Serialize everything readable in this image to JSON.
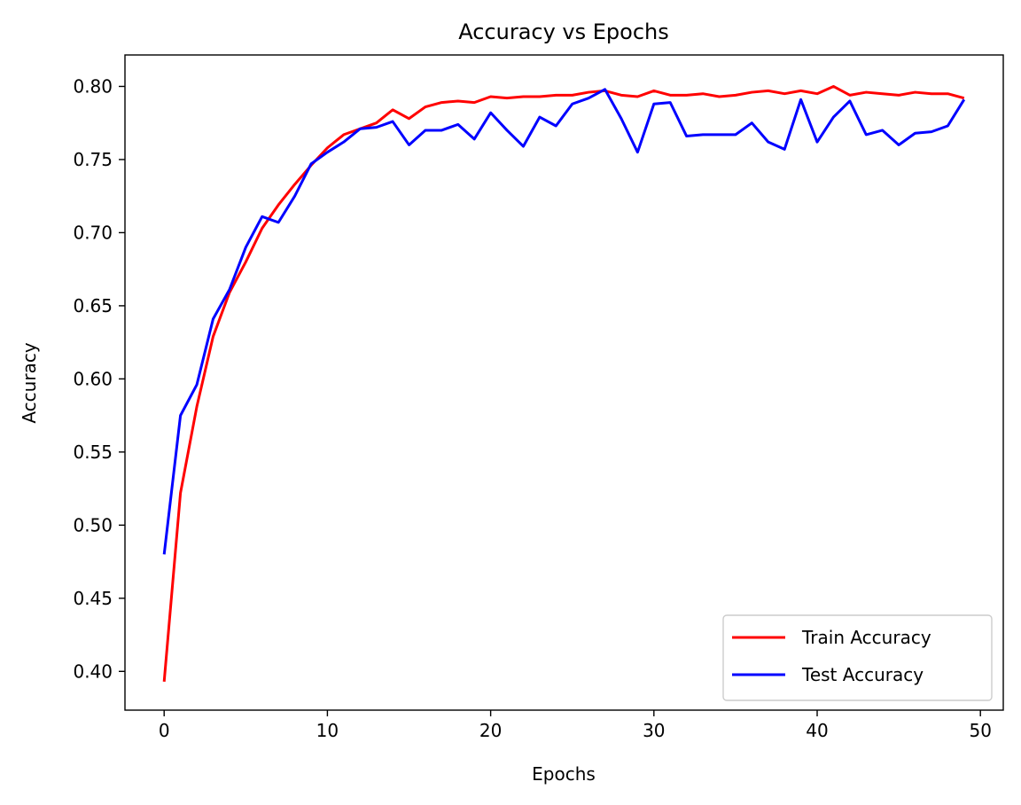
{
  "chart_data": {
    "type": "line",
    "title": "Accuracy vs Epochs",
    "xlabel": "Epochs",
    "ylabel": "Accuracy",
    "xlim": [
      -2.4,
      51.4
    ],
    "ylim": [
      0.3735,
      0.8215
    ],
    "xticks": [
      0,
      10,
      20,
      30,
      40,
      50
    ],
    "xtick_labels": [
      "0",
      "10",
      "20",
      "30",
      "40",
      "50"
    ],
    "yticks": [
      0.4,
      0.45,
      0.5,
      0.55,
      0.6,
      0.65,
      0.7,
      0.75,
      0.8
    ],
    "ytick_labels": [
      "0.40",
      "0.45",
      "0.50",
      "0.55",
      "0.60",
      "0.65",
      "0.70",
      "0.75",
      "0.80"
    ],
    "grid": false,
    "legend_position": "lower-right",
    "x": [
      0,
      1,
      2,
      3,
      4,
      5,
      6,
      7,
      8,
      9,
      10,
      11,
      12,
      13,
      14,
      15,
      16,
      17,
      18,
      19,
      20,
      21,
      22,
      23,
      24,
      25,
      26,
      27,
      28,
      29,
      30,
      31,
      32,
      33,
      34,
      35,
      36,
      37,
      38,
      39,
      40,
      41,
      42,
      43,
      44,
      45,
      46,
      47,
      48,
      49
    ],
    "series": [
      {
        "name": "Train Accuracy",
        "color": "#ff0000",
        "values": [
          0.393,
          0.522,
          0.581,
          0.629,
          0.659,
          0.68,
          0.703,
          0.719,
          0.733,
          0.746,
          0.758,
          0.767,
          0.771,
          0.775,
          0.784,
          0.778,
          0.786,
          0.789,
          0.79,
          0.789,
          0.793,
          0.792,
          0.793,
          0.793,
          0.794,
          0.794,
          0.796,
          0.797,
          0.794,
          0.793,
          0.797,
          0.794,
          0.794,
          0.795,
          0.793,
          0.794,
          0.796,
          0.797,
          0.795,
          0.797,
          0.795,
          0.8,
          0.794,
          0.796,
          0.795,
          0.794,
          0.796,
          0.795,
          0.795,
          0.792
        ]
      },
      {
        "name": "Test Accuracy",
        "color": "#0000ff",
        "values": [
          0.48,
          0.575,
          0.596,
          0.641,
          0.661,
          0.69,
          0.711,
          0.707,
          0.725,
          0.747,
          0.755,
          0.762,
          0.771,
          0.772,
          0.776,
          0.76,
          0.77,
          0.77,
          0.774,
          0.764,
          0.782,
          0.77,
          0.759,
          0.779,
          0.773,
          0.788,
          0.792,
          0.798,
          0.778,
          0.755,
          0.788,
          0.789,
          0.766,
          0.767,
          0.767,
          0.767,
          0.775,
          0.762,
          0.757,
          0.791,
          0.762,
          0.779,
          0.79,
          0.767,
          0.77,
          0.76,
          0.768,
          0.769,
          0.773,
          0.791
        ]
      }
    ]
  }
}
